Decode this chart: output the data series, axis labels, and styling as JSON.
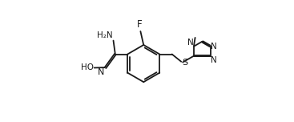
{
  "bg_color": "#ffffff",
  "line_color": "#1a1a1a",
  "lw": 1.3,
  "fs": 7.5,
  "figsize": [
    3.67,
    1.52
  ],
  "dpi": 100,
  "xlim": [
    0.0,
    3.67
  ],
  "ylim": [
    0.0,
    1.52
  ]
}
